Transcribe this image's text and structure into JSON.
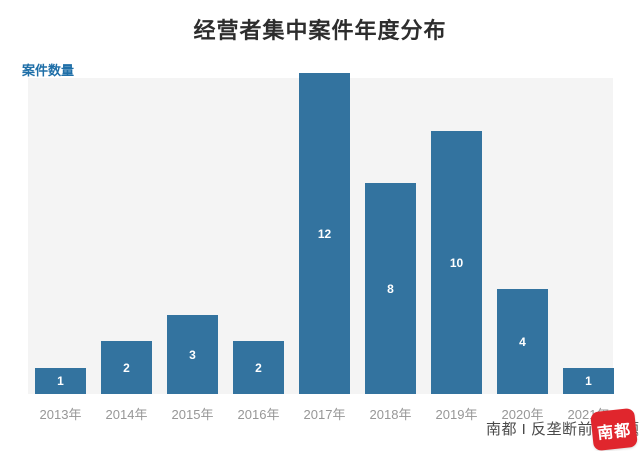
{
  "title": "经营者集中案件年度分布",
  "y_axis_label": "案件数量",
  "caption": "南都 I 反垄断前沿课题组",
  "logo": {
    "text": "南都"
  },
  "colors": {
    "bar": "#33739f",
    "plot_background": "#f4f4f4",
    "title_text": "#2d2d2d",
    "y_axis_label_text": "#1f6fa8",
    "tick_label_text": "#979797",
    "value_label_text": "#ffffff",
    "caption_text": "#4a4a4a",
    "logo_background": "#e0262d"
  },
  "chart_data": {
    "type": "bar",
    "title": "经营者集中案件年度分布",
    "categories": [
      "2013年",
      "2014年",
      "2015年",
      "2016年",
      "2017年",
      "2018年",
      "2019年",
      "2020年",
      "2021年"
    ],
    "values": [
      1,
      2,
      3,
      2,
      12,
      8,
      10,
      4,
      1
    ],
    "xlabel": "",
    "ylabel": "案件数量",
    "ylim": [
      0,
      12
    ],
    "grid": false,
    "legend": "none",
    "bar_value_labels": "centered-white"
  }
}
